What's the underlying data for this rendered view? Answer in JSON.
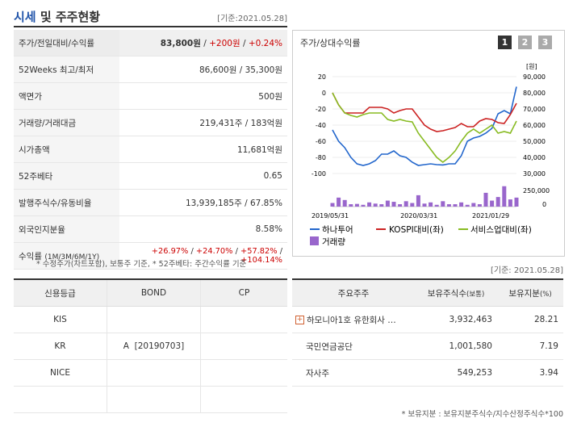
{
  "header": {
    "title_blue": "시세",
    "title_rest": " 및 주주현황",
    "date": "[기준:2021.05.28]"
  },
  "quote_table": {
    "rows": [
      {
        "label": "주가/전일대비/수익률",
        "price": "83,800원",
        "sep1": " / ",
        "change": "+200원",
        "sep2": " / ",
        "rate": "+0.24%"
      },
      {
        "label": "52Weeks 최고/최저",
        "value": "86,600원 / 35,300원"
      },
      {
        "label": "액면가",
        "value": "500원"
      },
      {
        "label": "거래량/거래대금",
        "value": "219,431주 / 183억원"
      },
      {
        "label": "시가총액",
        "value": "11,681억원"
      },
      {
        "label": "52주베타",
        "value": "0.65"
      },
      {
        "label": "발행주식수/유동비율",
        "value": "13,939,185주 / 67.85%"
      },
      {
        "label": "외국인지분율",
        "value": "8.58%"
      },
      {
        "label": "수익률",
        "label_sub": "(1M/3M/6M/1Y)",
        "r1": "+26.97%",
        "r2": "+24.70%",
        "r3": "+57.82%",
        "r4": "+104.14%",
        "sep": " / "
      }
    ],
    "note": "* 수정주가(차트포함), 보통주 기준, * 52주베타: 주간수익률 기준"
  },
  "chart_panel": {
    "title": "주가/상대수익률",
    "buttons": [
      "1",
      "2",
      "3"
    ],
    "active_button": "1",
    "left_unit": "",
    "right_unit": "[원]",
    "colors": {
      "hana": "#2266cc",
      "kospi": "#cc2222",
      "service": "#88bb22",
      "volume": "#9966cc"
    },
    "legend": {
      "hana": "하나투어",
      "kospi": "KOSPI대비(좌)",
      "service": "서비스업대비(좌)",
      "volume": "거래량"
    }
  },
  "chart_data": {
    "type": "line",
    "x_labels": [
      "2019/05/31",
      "2020/03/31",
      "2021/01/29"
    ],
    "left_axis": {
      "ticks": [
        "20",
        "0",
        "-20",
        "-40",
        "-60",
        "-80",
        "-100"
      ],
      "ylim": [
        -100,
        20
      ]
    },
    "right_axis": {
      "ticks": [
        "90,000",
        "80,000",
        "70,000",
        "60,000",
        "50,000",
        "40,000",
        "30,000"
      ],
      "ylim": [
        30000,
        90000
      ]
    },
    "volume_axis": {
      "ticks": [
        "250,000",
        "0"
      ]
    },
    "series": [
      {
        "name": "하나투어",
        "axis": "right",
        "values": [
          57000,
          50000,
          46000,
          40000,
          36000,
          35000,
          36000,
          38000,
          42000,
          42000,
          44000,
          41000,
          40000,
          37000,
          35000,
          35500,
          36000,
          35500,
          35300,
          36000,
          36000,
          41000,
          50000,
          52000,
          53000,
          55000,
          58000,
          67000,
          69000,
          67000,
          83800
        ]
      },
      {
        "name": "KOSPI대비",
        "axis": "left",
        "values": [
          0,
          -15,
          -25,
          -25,
          -25,
          -25,
          -18,
          -18,
          -18,
          -20,
          -25,
          -22,
          -20,
          -20,
          -30,
          -40,
          -45,
          -48,
          -47,
          -45,
          -43,
          -38,
          -42,
          -42,
          -35,
          -32,
          -33,
          -37,
          -38,
          -27,
          -13
        ]
      },
      {
        "name": "서비스업대비",
        "axis": "left",
        "values": [
          0,
          -15,
          -25,
          -28,
          -30,
          -27,
          -25,
          -25,
          -25,
          -33,
          -35,
          -33,
          -35,
          -36,
          -50,
          -60,
          -70,
          -80,
          -86,
          -80,
          -72,
          -60,
          -50,
          -45,
          -50,
          -45,
          -40,
          -50,
          -48,
          -50,
          -35
        ]
      },
      {
        "name": "거래량",
        "axis": "volume",
        "values": [
          60000,
          150000,
          110000,
          40000,
          45000,
          30000,
          70000,
          50000,
          40000,
          100000,
          80000,
          40000,
          90000,
          60000,
          190000,
          50000,
          70000,
          30000,
          90000,
          40000,
          40000,
          70000,
          30000,
          60000,
          40000,
          230000,
          100000,
          160000,
          340000,
          120000,
          150000
        ]
      }
    ]
  },
  "right_date": "[기준: 2021.05.28]",
  "credit_table": {
    "headers": [
      "신용등급",
      "BOND",
      "CP"
    ],
    "rows": [
      [
        "KIS",
        "",
        ""
      ],
      [
        "KR",
        "A  [20190703]",
        ""
      ],
      [
        "NICE",
        "",
        ""
      ],
      [
        "",
        "",
        ""
      ]
    ]
  },
  "holder_table": {
    "headers": [
      "주요주주",
      "보유주식수",
      "(보통)",
      "보유지분",
      "(%)"
    ],
    "rows": [
      {
        "name": "하모니아1호 유한회사 …",
        "shares": "3,932,463",
        "pct": "28.21",
        "expand": "+"
      },
      {
        "name": "국민연금공단",
        "shares": "1,001,580",
        "pct": "7.19"
      },
      {
        "name": "자사주",
        "shares": "549,253",
        "pct": "3.94"
      }
    ],
    "note": "* 보유지분 : 보유지분주식수/지수산정주식수*100"
  }
}
